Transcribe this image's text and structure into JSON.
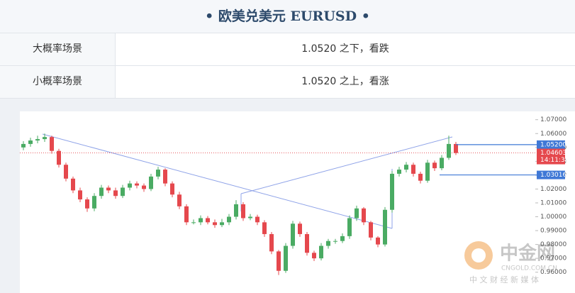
{
  "header": {
    "title": "• 欧美兑美元  EURUSD •"
  },
  "table": {
    "rows": [
      [
        "大概率场景",
        "1.0520 之下，看跌"
      ],
      [
        "小概率场景",
        "1.0520 之上，看涨"
      ]
    ]
  },
  "chart_data": {
    "type": "candlestick",
    "open": [
      1.05,
      1.0525,
      1.055,
      1.056,
      1.0575,
      1.0475,
      1.0375,
      1.0275,
      1.019,
      1.0125,
      1.006,
      1.015,
      1.021,
      1.019,
      1.015,
      1.021,
      1.024,
      1.0225,
      1.02,
      1.029,
      1.034,
      1.024,
      1.016,
      1.0075,
      0.996,
      0.996,
      0.999,
      0.996,
      0.994,
      0.996,
      1.0,
      1.009,
      0.999,
      1.0,
      0.996,
      0.9875,
      0.975,
      0.961,
      0.979,
      0.995,
      0.9875,
      0.974,
      0.97,
      0.979,
      0.9825,
      0.9825,
      0.986,
      0.999,
      1.006,
      0.996,
      0.985,
      0.98,
      1.005,
      1.031,
      1.034,
      1.0375,
      1.031,
      1.026,
      1.039,
      1.035,
      1.0425,
      1.0525
    ],
    "high": [
      1.0545,
      1.057,
      1.0585,
      1.06,
      1.0585,
      1.049,
      1.039,
      1.029,
      1.021,
      1.014,
      1.017,
      1.023,
      1.0225,
      1.021,
      1.023,
      1.026,
      1.0255,
      1.024,
      1.031,
      1.036,
      1.035,
      1.0255,
      1.018,
      1.009,
      0.998,
      1.001,
      1.0005,
      0.998,
      0.9985,
      1.002,
      1.012,
      1.0105,
      1.002,
      1.0015,
      0.9975,
      0.989,
      0.976,
      0.981,
      0.997,
      0.9965,
      0.989,
      0.9755,
      0.981,
      0.984,
      0.984,
      0.988,
      1.001,
      1.008,
      1.007,
      0.997,
      0.986,
      1.007,
      1.033,
      1.036,
      1.0395,
      1.039,
      1.0325,
      1.041,
      1.0405,
      1.0445,
      1.0585,
      1.054
    ],
    "low": [
      1.048,
      1.0505,
      1.053,
      1.054,
      1.0455,
      1.0355,
      1.0255,
      1.017,
      1.0105,
      1.0035,
      1.004,
      1.013,
      1.017,
      1.013,
      1.0135,
      1.019,
      1.0205,
      1.018,
      1.0185,
      1.027,
      1.022,
      1.014,
      1.0055,
      0.994,
      0.9945,
      0.994,
      0.9945,
      0.992,
      0.9925,
      0.994,
      0.998,
      0.997,
      0.9975,
      0.994,
      0.9855,
      0.973,
      0.958,
      0.9595,
      0.977,
      0.9855,
      0.972,
      0.968,
      0.9685,
      0.977,
      0.9805,
      0.981,
      0.984,
      0.997,
      0.994,
      0.983,
      0.978,
      0.9785,
      1.003,
      1.029,
      1.032,
      1.029,
      1.024,
      1.0245,
      1.033,
      1.0335,
      1.041,
      1.0445
    ],
    "close": [
      1.0525,
      1.055,
      1.056,
      1.0575,
      1.0475,
      1.0375,
      1.0275,
      1.019,
      1.0125,
      1.006,
      1.015,
      1.021,
      1.019,
      1.015,
      1.021,
      1.024,
      1.0225,
      1.02,
      1.029,
      1.034,
      1.024,
      1.016,
      1.0075,
      0.996,
      0.996,
      0.999,
      0.996,
      0.994,
      0.996,
      1.0,
      1.009,
      0.999,
      1.0,
      0.996,
      0.9875,
      0.975,
      0.961,
      0.979,
      0.995,
      0.9875,
      0.974,
      0.97,
      0.979,
      0.9825,
      0.9825,
      0.986,
      0.999,
      1.006,
      0.996,
      0.985,
      0.98,
      1.005,
      1.031,
      1.034,
      1.0375,
      1.031,
      1.026,
      1.039,
      1.035,
      1.0425,
      1.0525,
      1.046
    ],
    "up_color": "#4aab63",
    "down_color": "#e5484d",
    "ylim": [
      0.945,
      1.076
    ],
    "yticks": [
      {
        "value": 1.07,
        "label": "1.07000"
      },
      {
        "value": 1.06,
        "label": "1.06000"
      },
      {
        "value": 1.05,
        "label": "1.05000"
      },
      {
        "value": 1.04,
        "label": "1.04000"
      },
      {
        "value": 1.03,
        "label": "1.03000"
      },
      {
        "value": 1.02,
        "label": "1.02000"
      },
      {
        "value": 1.01,
        "label": "1.01000"
      },
      {
        "value": 1.0,
        "label": "1.00000"
      },
      {
        "value": 0.99,
        "label": "0.99000"
      },
      {
        "value": 0.98,
        "label": "0.98000"
      },
      {
        "value": 0.97,
        "label": "0.97000"
      },
      {
        "value": 0.96,
        "label": "0.96000"
      }
    ],
    "levels": [
      {
        "value": 1.052,
        "label": "1.05200",
        "color": "#3f78d6"
      },
      {
        "value": 1.03016,
        "label": "1.03016",
        "color": "#3f78d6"
      }
    ],
    "last_price": {
      "value": 1.04603,
      "label": "1.04603",
      "time": "14:11:38",
      "color": "#e5484d"
    }
  },
  "watermark": {
    "name": "中金网",
    "site": "CNGOLD.COM.CN",
    "slogan": "中 文 财 经 新 媒 体"
  }
}
